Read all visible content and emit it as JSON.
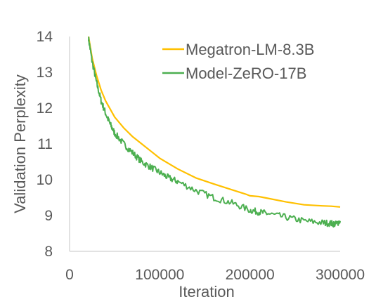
{
  "chart_data": {
    "type": "line",
    "xlabel": "Iteration",
    "ylabel": "Validation Perplexity",
    "xlim": [
      0,
      300000
    ],
    "ylim": [
      8,
      14
    ],
    "x_ticks": [
      {
        "value": 0,
        "label": "0"
      },
      {
        "value": 100000,
        "label": "100000"
      },
      {
        "value": 200000,
        "label": "200000"
      },
      {
        "value": 300000,
        "label": "300000"
      }
    ],
    "y_ticks": [
      {
        "value": 8,
        "label": "8"
      },
      {
        "value": 9,
        "label": "9"
      },
      {
        "value": 10,
        "label": "10"
      },
      {
        "value": 11,
        "label": "11"
      },
      {
        "value": 12,
        "label": "12"
      },
      {
        "value": 13,
        "label": "13"
      },
      {
        "value": 14,
        "label": "14"
      }
    ],
    "grid": false,
    "legend_position": "top-right",
    "series": [
      {
        "name": "Megatron-LM-8.3B",
        "color": "#FFC000",
        "x": [
          21000,
          25000,
          30000,
          35000,
          40000,
          50000,
          60000,
          70000,
          80000,
          90000,
          100000,
          120000,
          140000,
          160000,
          180000,
          195000,
          200000,
          210000,
          220000,
          240000,
          260000,
          280000,
          290000,
          300000
        ],
        "y": [
          14.0,
          13.4,
          12.9,
          12.5,
          12.2,
          11.75,
          11.45,
          11.2,
          11.0,
          10.8,
          10.6,
          10.3,
          10.05,
          9.88,
          9.72,
          9.6,
          9.55,
          9.53,
          9.48,
          9.38,
          9.3,
          9.27,
          9.26,
          9.24
        ]
      },
      {
        "name": "Model-ZeRO-17B",
        "color": "#4CAF50",
        "x": [
          21000,
          25000,
          30000,
          35000,
          40000,
          45000,
          50000,
          60000,
          70000,
          80000,
          90000,
          100000,
          110000,
          120000,
          140000,
          160000,
          180000,
          200000,
          210000,
          220000,
          240000,
          260000,
          280000,
          290000,
          295000,
          300000
        ],
        "y": [
          13.95,
          13.3,
          12.7,
          12.2,
          11.85,
          11.55,
          11.3,
          11.0,
          10.75,
          10.5,
          10.35,
          10.2,
          10.05,
          9.95,
          9.7,
          9.5,
          9.35,
          9.15,
          9.1,
          9.05,
          8.95,
          8.85,
          8.8,
          8.78,
          8.76,
          8.85
        ]
      }
    ]
  }
}
